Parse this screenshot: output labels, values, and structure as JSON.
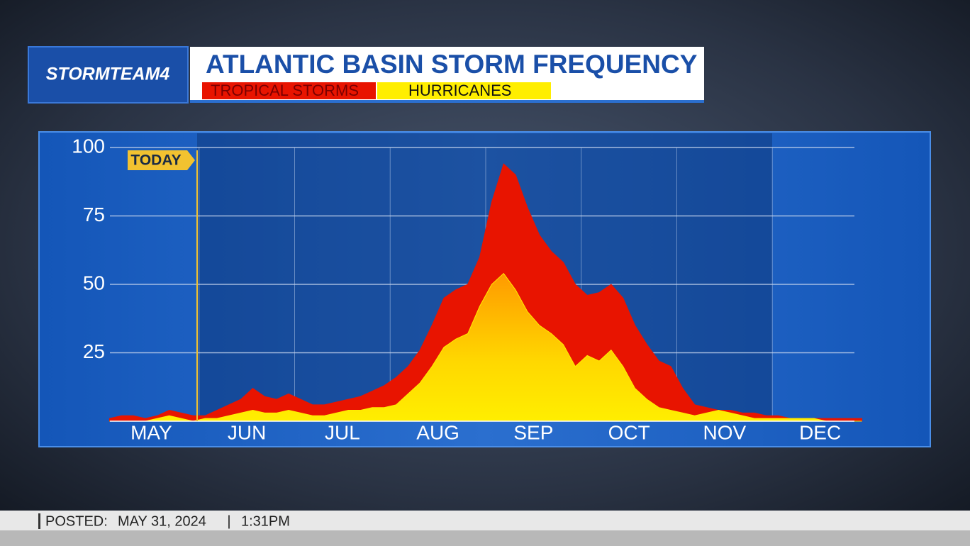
{
  "logo": "STORMTEAM4",
  "chart_data": {
    "type": "area",
    "title": "ATLANTIC BASIN STORM FREQUENCY",
    "annotation": "TODAY",
    "categories": [
      "MAY",
      null,
      null,
      null,
      null,
      null,
      null,
      null,
      "JUN",
      null,
      null,
      null,
      null,
      null,
      null,
      null,
      "JUL",
      null,
      null,
      null,
      null,
      null,
      null,
      null,
      "AUG",
      null,
      null,
      null,
      null,
      null,
      null,
      null,
      "SEP",
      null,
      null,
      null,
      null,
      null,
      null,
      null,
      "OCT",
      null,
      null,
      null,
      null,
      null,
      null,
      null,
      "NOV",
      null,
      null,
      null,
      null,
      null,
      null,
      null,
      "DEC",
      null,
      null,
      null,
      null,
      null,
      null,
      null
    ],
    "series": [
      {
        "name": "TROPICAL STORMS",
        "color": "#e81400",
        "values": [
          1,
          2,
          2,
          1,
          2,
          4,
          3,
          2,
          2,
          4,
          6,
          8,
          12,
          9,
          8,
          10,
          8,
          6,
          6,
          7,
          8,
          9,
          11,
          13,
          16,
          20,
          26,
          35,
          45,
          48,
          50,
          60,
          80,
          94,
          90,
          78,
          68,
          62,
          58,
          50,
          46,
          47,
          50,
          45,
          35,
          28,
          22,
          20,
          12,
          6,
          5,
          4,
          4,
          3,
          3,
          2,
          2,
          1,
          1,
          1,
          1,
          1,
          1,
          1
        ]
      },
      {
        "name": "HURRICANES",
        "color": "#ffee00",
        "values": [
          0,
          0,
          0,
          0,
          1,
          2,
          1,
          0,
          1,
          1,
          2,
          3,
          4,
          3,
          3,
          4,
          3,
          2,
          2,
          3,
          4,
          4,
          5,
          5,
          6,
          10,
          14,
          20,
          27,
          30,
          32,
          42,
          50,
          54,
          48,
          40,
          35,
          32,
          28,
          20,
          24,
          22,
          26,
          20,
          12,
          8,
          5,
          4,
          3,
          2,
          3,
          4,
          3,
          2,
          1,
          1,
          1,
          1,
          1,
          1,
          0,
          0,
          0,
          0
        ]
      }
    ],
    "ylim": [
      0,
      100
    ],
    "yticks": [
      25,
      50,
      75,
      100
    ],
    "grid": true
  },
  "footer": {
    "label": "POSTED:",
    "date": "MAY 31, 2024",
    "time": "1:31PM"
  }
}
